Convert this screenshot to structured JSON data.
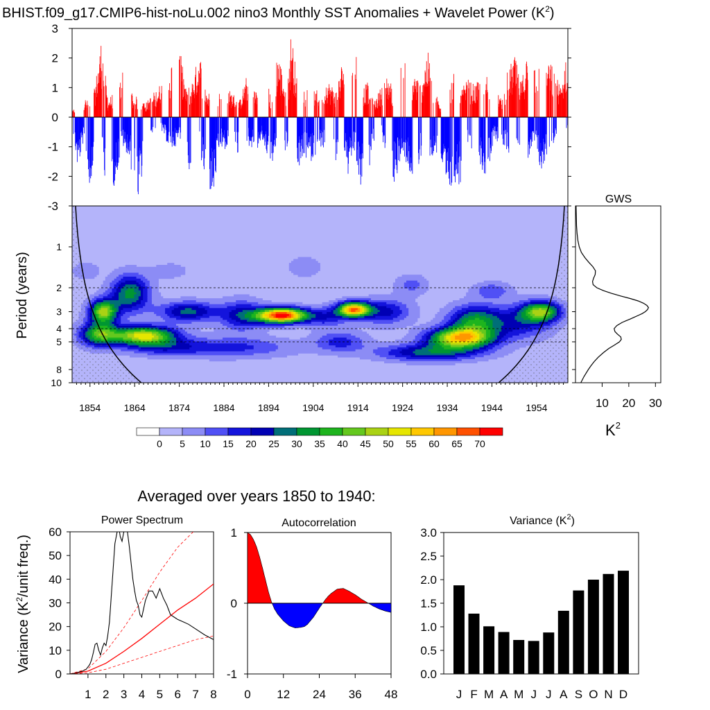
{
  "title": {
    "main": "BHIST.f09_g17.CMIP6-hist-noLu.002 nino3 Monthly SST Anomalies + Wavelet Power (K",
    "sup": "2",
    "close": ")"
  },
  "colors": {
    "positive": "#ff0000",
    "negative": "#0000ff",
    "line": "#000000",
    "significance": "#ff0000"
  },
  "chart_data": [
    {
      "type": "bar",
      "name": "timeseries",
      "ylim": [
        -3,
        3
      ],
      "yticks": [
        "-3",
        "-2",
        "-1",
        "0",
        "1",
        "2",
        "3"
      ],
      "ytick_values": [
        -3,
        -2,
        -1,
        0,
        1,
        2,
        3
      ],
      "xlim": [
        1850,
        1961
      ],
      "time_start": 1850,
      "time_step": 0.0833,
      "envelope_knots": [
        [
          1850.0,
          0.2,
          -0.3
        ],
        [
          1851.2,
          0.5,
          -1.8
        ],
        [
          1852.5,
          0.7,
          -0.8
        ],
        [
          1853.8,
          0.5,
          -2.6
        ],
        [
          1855.0,
          1.0,
          -1.2
        ],
        [
          1856.5,
          2.7,
          -1.4
        ],
        [
          1858.0,
          0.6,
          -2.6
        ],
        [
          1859.5,
          0.9,
          -2.3
        ],
        [
          1861.0,
          1.4,
          -1.1
        ],
        [
          1862.2,
          2.4,
          -1.2
        ],
        [
          1863.5,
          0.7,
          -2.0
        ],
        [
          1864.8,
          0.7,
          -2.9
        ],
        [
          1866.5,
          0.5,
          -1.0
        ],
        [
          1868.5,
          0.9,
          -0.4
        ],
        [
          1870.5,
          1.3,
          -0.6
        ],
        [
          1872.0,
          1.8,
          -1.2
        ],
        [
          1874.0,
          2.4,
          -0.8
        ],
        [
          1875.5,
          0.9,
          -1.7
        ],
        [
          1877.0,
          1.3,
          -2.5
        ],
        [
          1878.5,
          2.3,
          -1.3
        ],
        [
          1880.0,
          0.9,
          -2.3
        ],
        [
          1881.5,
          0.7,
          -2.8
        ],
        [
          1883.0,
          1.2,
          -1.0
        ],
        [
          1884.5,
          1.0,
          -1.2
        ],
        [
          1886.0,
          0.8,
          -1.1
        ],
        [
          1887.5,
          0.6,
          -1.4
        ],
        [
          1889.0,
          1.4,
          -0.9
        ],
        [
          1891.0,
          0.9,
          -1.2
        ],
        [
          1892.5,
          1.8,
          -0.8
        ],
        [
          1894.5,
          0.7,
          -1.7
        ],
        [
          1896.0,
          2.3,
          -0.9
        ],
        [
          1898.0,
          0.8,
          -1.2
        ],
        [
          1899.0,
          3.0,
          -0.7
        ],
        [
          1900.5,
          1.0,
          -1.8
        ],
        [
          1902.0,
          1.0,
          -1.4
        ],
        [
          1903.5,
          1.0,
          -1.5
        ],
        [
          1905.5,
          0.9,
          -1.0
        ],
        [
          1907.0,
          1.3,
          -1.2
        ],
        [
          1909.0,
          0.9,
          -1.6
        ],
        [
          1910.5,
          2.0,
          -0.7
        ],
        [
          1911.8,
          1.2,
          -2.1
        ],
        [
          1913.0,
          3.0,
          -1.1
        ],
        [
          1914.5,
          0.9,
          -2.5
        ],
        [
          1916.0,
          1.2,
          -2.0
        ],
        [
          1917.5,
          0.5,
          -1.0
        ],
        [
          1919.0,
          1.0,
          -0.7
        ],
        [
          1920.5,
          1.5,
          -1.3
        ],
        [
          1922.0,
          0.9,
          -2.3
        ],
        [
          1923.5,
          2.6,
          -1.5
        ],
        [
          1925.0,
          1.5,
          -1.6
        ],
        [
          1926.5,
          1.5,
          -2.5
        ],
        [
          1928.0,
          1.2,
          -1.4
        ],
        [
          1929.5,
          2.3,
          -2.0
        ],
        [
          1931.0,
          1.0,
          -1.2
        ],
        [
          1932.5,
          0.3,
          -1.7
        ],
        [
          1934.0,
          0.6,
          -2.9
        ],
        [
          1935.5,
          1.8,
          -2.2
        ],
        [
          1937.0,
          0.9,
          -2.3
        ],
        [
          1938.5,
          1.3,
          -1.2
        ],
        [
          1940.0,
          1.1,
          -1.0
        ],
        [
          1941.5,
          1.3,
          -1.8
        ],
        [
          1943.0,
          1.5,
          -2.1
        ],
        [
          1944.5,
          1.2,
          -0.7
        ],
        [
          1946.0,
          0.6,
          -1.0
        ],
        [
          1947.5,
          1.6,
          -1.2
        ],
        [
          1949.0,
          2.1,
          -1.4
        ],
        [
          1950.5,
          1.2,
          -0.8
        ],
        [
          1952.0,
          2.3,
          -1.5
        ],
        [
          1953.5,
          2.2,
          -0.9
        ],
        [
          1955.0,
          1.5,
          -2.0
        ],
        [
          1956.5,
          2.1,
          -1.1
        ],
        [
          1958.0,
          1.5,
          -0.9
        ],
        [
          1959.5,
          1.0,
          -0.6
        ],
        [
          1961.0,
          2.8,
          -0.3
        ]
      ]
    },
    {
      "type": "heatmap",
      "name": "wavelet-power",
      "xlabel": "",
      "ylabel": "Period (years)",
      "xticks": [
        "1854",
        "1864",
        "1874",
        "1884",
        "1894",
        "1904",
        "1914",
        "1924",
        "1934",
        "1944",
        "1954"
      ],
      "xtick_values": [
        1854,
        1864,
        1874,
        1884,
        1894,
        1904,
        1914,
        1924,
        1934,
        1944,
        1954
      ],
      "xlim": [
        1850,
        1961
      ],
      "ylim_period": [
        0.5,
        10
      ],
      "y_scale": "log",
      "yticks": [
        "1",
        "2",
        "3",
        "4",
        "5",
        "8",
        "10"
      ],
      "ytick_values": [
        1,
        2,
        3,
        4,
        5,
        8,
        10
      ],
      "reference_periods": [
        2,
        4,
        5
      ],
      "blobs": [
        [
          1857,
          3.0,
          2.2,
          0.14,
          45
        ],
        [
          1863,
          2.2,
          3.0,
          0.22,
          30
        ],
        [
          1866,
          4.5,
          5.0,
          0.11,
          50
        ],
        [
          1856,
          4.4,
          3.0,
          0.14,
          35
        ],
        [
          1876,
          3.0,
          4.5,
          0.12,
          25
        ],
        [
          1888,
          3.2,
          3.5,
          0.18,
          20
        ],
        [
          1897,
          3.2,
          4.0,
          0.09,
          72
        ],
        [
          1913,
          2.9,
          2.5,
          0.09,
          60
        ],
        [
          1920,
          3.0,
          4.0,
          0.15,
          20
        ],
        [
          1907,
          3.3,
          3.0,
          0.12,
          15
        ],
        [
          1937,
          4.7,
          5.0,
          0.12,
          55
        ],
        [
          1940,
          3.5,
          4.0,
          0.18,
          30
        ],
        [
          1930,
          6.0,
          8.0,
          0.1,
          25
        ],
        [
          1955,
          3.0,
          3.0,
          0.12,
          40
        ],
        [
          1950,
          3.6,
          5.0,
          0.2,
          18
        ],
        [
          1885,
          5.5,
          10.0,
          0.12,
          15
        ],
        [
          1870,
          5.5,
          6.0,
          0.1,
          12
        ],
        [
          1902,
          1.4,
          2.5,
          0.12,
          8
        ],
        [
          1872,
          1.5,
          3.0,
          0.1,
          6
        ],
        [
          1853,
          1.5,
          2.0,
          0.1,
          8
        ],
        [
          1944,
          2.1,
          3.0,
          0.1,
          12
        ],
        [
          1926,
          1.9,
          2.5,
          0.12,
          10
        ],
        [
          1910,
          5.0,
          4.0,
          0.12,
          15
        ]
      ],
      "levels": [
        0,
        5,
        10,
        15,
        20,
        25,
        30,
        35,
        40,
        45,
        50,
        55,
        60,
        65,
        70
      ],
      "level_labels": [
        "0",
        "5",
        "10",
        "15",
        "20",
        "25",
        "30",
        "35",
        "40",
        "45",
        "50",
        "55",
        "60",
        "65",
        "70"
      ],
      "level_colors": [
        "#ffffff",
        "#b4b4fa",
        "#8c8cf5",
        "#5050f5",
        "#1414dc",
        "#0000b4",
        "#006e78",
        "#009632",
        "#1eb41e",
        "#64c81e",
        "#aad214",
        "#e6e600",
        "#ffc800",
        "#ff9600",
        "#ff5000",
        "#ff0000"
      ]
    },
    {
      "type": "line",
      "name": "gws",
      "title": "GWS",
      "xlabel": "K",
      "xlabel_sup": "2",
      "xticks": [
        "10",
        "20",
        "30"
      ],
      "xtick_values": [
        10,
        20,
        30
      ],
      "xlim": [
        0,
        32
      ],
      "period": [
        0.5,
        0.6,
        0.7,
        0.8,
        0.9,
        1.0,
        1.1,
        1.2,
        1.3,
        1.4,
        1.5,
        1.6,
        1.7,
        1.8,
        1.9,
        2.0,
        2.1,
        2.2,
        2.3,
        2.4,
        2.5,
        2.6,
        2.7,
        2.8,
        2.9,
        3.0,
        3.1,
        3.2,
        3.3,
        3.4,
        3.5,
        3.6,
        3.8,
        4.0,
        4.2,
        4.4,
        4.6,
        4.8,
        5.0,
        5.3,
        5.6,
        6.0,
        6.5,
        7.0,
        7.5,
        8.0,
        9.0,
        10.0
      ],
      "power": [
        0.2,
        0.3,
        0.4,
        0.6,
        0.9,
        1.4,
        2.2,
        3.5,
        5.0,
        6.5,
        7.5,
        7.4,
        6.8,
        6.4,
        6.6,
        8.0,
        10.5,
        13.5,
        17.0,
        20.5,
        23.5,
        25.5,
        26.8,
        27.4,
        27.0,
        26.2,
        25.0,
        23.5,
        22.0,
        20.5,
        19.0,
        17.5,
        15.5,
        14.5,
        14.8,
        15.8,
        17.0,
        17.2,
        16.5,
        14.5,
        12.5,
        10.5,
        8.5,
        7.0,
        5.8,
        4.8,
        3.2,
        2.0
      ]
    },
    {
      "type": "line",
      "name": "power-spectrum",
      "title": "Power Spectrum",
      "ylabel": "Variance (K",
      "ylabel_sup": "2",
      "ylabel_tail": "/unit freq.)",
      "xticks": [
        "1",
        "2",
        "3",
        "4",
        "5",
        "6",
        "7",
        "8"
      ],
      "xtick_values": [
        1,
        2,
        3,
        4,
        5,
        6,
        7,
        8
      ],
      "yticks": [
        "0",
        "10",
        "20",
        "30",
        "40",
        "50",
        "60"
      ],
      "ytick_values": [
        0,
        10,
        20,
        30,
        40,
        50,
        60
      ],
      "xlim": [
        0,
        8
      ],
      "ylim": [
        0,
        60
      ],
      "x": [
        0.0,
        0.3,
        0.5,
        0.7,
        0.9,
        1.0,
        1.1,
        1.2,
        1.3,
        1.4,
        1.5,
        1.6,
        1.7,
        1.8,
        1.9,
        2.0,
        2.1,
        2.2,
        2.3,
        2.4,
        2.5,
        2.6,
        2.7,
        2.8,
        2.9,
        3.0,
        3.1,
        3.2,
        3.3,
        3.4,
        3.5,
        3.6,
        3.7,
        3.8,
        3.9,
        4.0,
        4.2,
        4.4,
        4.6,
        4.8,
        5.0,
        5.2,
        5.4,
        5.6,
        5.8,
        6.0,
        6.3,
        6.6,
        7.0,
        7.5,
        8.0
      ],
      "y": [
        0,
        0.3,
        0.8,
        1.2,
        2,
        3,
        4,
        6,
        9,
        12.5,
        13,
        10,
        8,
        11,
        13,
        12,
        16,
        22,
        33,
        44,
        55,
        59,
        63,
        58,
        56,
        60,
        62,
        60,
        54,
        47,
        40,
        35,
        31,
        29,
        25,
        24,
        31,
        35,
        35,
        32,
        36,
        32,
        29,
        25,
        24,
        23,
        22,
        21,
        19,
        16.5,
        14.5
      ],
      "red_x": [
        0,
        1,
        2,
        3,
        4,
        5,
        6,
        7,
        8
      ],
      "red_mean": [
        0,
        1.2,
        4.5,
        9.5,
        15,
        21,
        27,
        32,
        38
      ],
      "red_upper": [
        0,
        2.2,
        9.5,
        19.5,
        31,
        43,
        53.5,
        61,
        63
      ],
      "red_lower": [
        0,
        0.5,
        2,
        4.5,
        7,
        9.5,
        12,
        14.5,
        16
      ]
    },
    {
      "type": "area",
      "name": "autocorrelation",
      "title": "Autocorrelation",
      "xticks": [
        "0",
        "12",
        "24",
        "36",
        "48"
      ],
      "xtick_values": [
        0,
        12,
        24,
        36,
        48
      ],
      "yticks": [
        "-1",
        "0",
        "1"
      ],
      "ytick_values": [
        -1,
        0,
        1
      ],
      "xlim": [
        0,
        48
      ],
      "ylim": [
        -1,
        1
      ],
      "x": [
        0,
        1,
        2,
        3,
        4,
        5,
        6,
        7,
        8,
        9,
        10,
        12,
        14,
        16,
        18,
        19,
        20,
        22,
        24,
        26,
        27,
        28,
        30,
        32,
        34,
        36,
        38,
        40,
        42,
        44,
        46,
        48
      ],
      "y": [
        1.0,
        0.97,
        0.9,
        0.8,
        0.66,
        0.5,
        0.33,
        0.16,
        0.02,
        -0.08,
        -0.15,
        -0.25,
        -0.32,
        -0.35,
        -0.34,
        -0.33,
        -0.3,
        -0.2,
        -0.07,
        0.05,
        0.1,
        0.14,
        0.2,
        0.21,
        0.17,
        0.12,
        0.06,
        0.01,
        -0.04,
        -0.08,
        -0.11,
        -0.13
      ]
    },
    {
      "type": "bar",
      "name": "monthly-variance",
      "title": "Variance (K",
      "title_sup": "2",
      "title_tail": ")",
      "categories": [
        "J",
        "F",
        "M",
        "A",
        "M",
        "J",
        "J",
        "A",
        "S",
        "O",
        "N",
        "D"
      ],
      "values": [
        1.88,
        1.28,
        1.01,
        0.89,
        0.72,
        0.7,
        0.88,
        1.34,
        1.77,
        2.0,
        2.12,
        2.19
      ],
      "yticks": [
        "0.0",
        "0.5",
        "1.0",
        "1.5",
        "2.0",
        "2.5",
        "3.0"
      ],
      "ytick_values": [
        0,
        0.5,
        1.0,
        1.5,
        2.0,
        2.5,
        3.0
      ],
      "ylim": [
        0,
        3
      ]
    }
  ],
  "bottom_heading": "Averaged over years 1850 to 1940:"
}
